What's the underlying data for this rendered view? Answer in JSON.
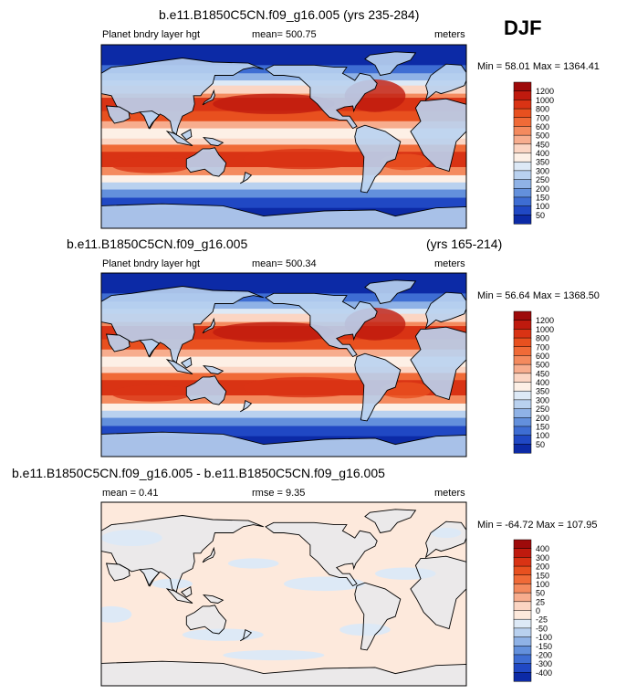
{
  "season": "DJF",
  "panels": [
    {
      "title": "b.e11.B1850C5CN.f09_g16.005 (yrs 235-284)",
      "title_right": "",
      "left_label": "Planet bndry layer hgt",
      "center_label": "mean= 500.75",
      "center_label_2": "",
      "units": "meters",
      "minmax": "Min =  58.01 Max = 1364.41"
    },
    {
      "title": "b.e11.B1850C5CN.f09_g16.005",
      "title_right": "(yrs 165-214)",
      "left_label": "Planet bndry layer hgt",
      "center_label": "mean= 500.34",
      "center_label_2": "",
      "units": "meters",
      "minmax": "Min =  56.64 Max = 1368.50"
    },
    {
      "title": "b.e11.B1850C5CN.f09_g16.005 - b.e11.B1850C5CN.f09_g16.005",
      "title_right": "",
      "left_label": "mean =  0.41",
      "center_label": "rmse =  9.35",
      "center_label_2": "",
      "units": "meters",
      "minmax": "Min = -64.72 Max = 107.95"
    }
  ],
  "chart_data": [
    {
      "type": "heatmap",
      "title": "b.e11.B1850C5CN.f09_g16.005 (yrs 235-284)",
      "variable": "Planet bndry layer hgt",
      "units": "meters",
      "mean": 500.75,
      "min": 58.01,
      "max": 1364.41,
      "colorbar_levels": [
        1200,
        1000,
        800,
        700,
        600,
        500,
        450,
        400,
        350,
        300,
        250,
        200,
        150,
        100,
        50
      ],
      "colorbar_labels": [
        "1200",
        "1000",
        "800",
        "700",
        "600",
        "500",
        "450",
        "400",
        "350",
        "300",
        "250",
        "200",
        "150",
        "100",
        "50"
      ],
      "colors": [
        "#9e0a0a",
        "#bf1a0e",
        "#d93314",
        "#e8501f",
        "#f06a37",
        "#f48a5e",
        "#f7ad8e",
        "#fbd5c3",
        "#fdf0e6",
        "#dde9f6",
        "#b9d1ef",
        "#8fb2e6",
        "#6390dc",
        "#3e6dd3",
        "#2048c4",
        "#0c2aa6"
      ]
    },
    {
      "type": "heatmap",
      "title": "b.e11.B1850C5CN.f09_g16.005 (yrs 165-214)",
      "variable": "Planet bndry layer hgt",
      "units": "meters",
      "mean": 500.34,
      "min": 56.64,
      "max": 1368.5,
      "colorbar_levels": [
        1200,
        1000,
        800,
        700,
        600,
        500,
        450,
        400,
        350,
        300,
        250,
        200,
        150,
        100,
        50
      ],
      "colorbar_labels": [
        "1200",
        "1000",
        "800",
        "700",
        "600",
        "500",
        "450",
        "400",
        "350",
        "300",
        "250",
        "200",
        "150",
        "100",
        "50"
      ],
      "colors": [
        "#9e0a0a",
        "#bf1a0e",
        "#d93314",
        "#e8501f",
        "#f06a37",
        "#f48a5e",
        "#f7ad8e",
        "#fbd5c3",
        "#fdf0e6",
        "#dde9f6",
        "#b9d1ef",
        "#8fb2e6",
        "#6390dc",
        "#3e6dd3",
        "#2048c4",
        "#0c2aa6"
      ]
    },
    {
      "type": "heatmap",
      "title": "b.e11.B1850C5CN.f09_g16.005 - b.e11.B1850C5CN.f09_g16.005",
      "variable": "difference",
      "units": "meters",
      "mean": 0.41,
      "rmse": 9.35,
      "min": -64.72,
      "max": 107.95,
      "colorbar_levels": [
        400,
        300,
        200,
        150,
        100,
        50,
        25,
        0,
        -25,
        -50,
        -100,
        -150,
        -200,
        -300,
        -400
      ],
      "colorbar_labels": [
        "400",
        "300",
        "200",
        "150",
        "100",
        "50",
        "25",
        "0",
        "-25",
        "-50",
        "-100",
        "-150",
        "-200",
        "-300",
        "-400"
      ],
      "colors": [
        "#9e0a0a",
        "#bf1a0e",
        "#d93314",
        "#e8501f",
        "#f06a37",
        "#f48a5e",
        "#f7ad8e",
        "#fbd5c3",
        "#fde9dc",
        "#dde9f6",
        "#b9d1ef",
        "#8fb2e6",
        "#6390dc",
        "#3e6dd3",
        "#2048c4",
        "#0c2aa6"
      ]
    }
  ]
}
